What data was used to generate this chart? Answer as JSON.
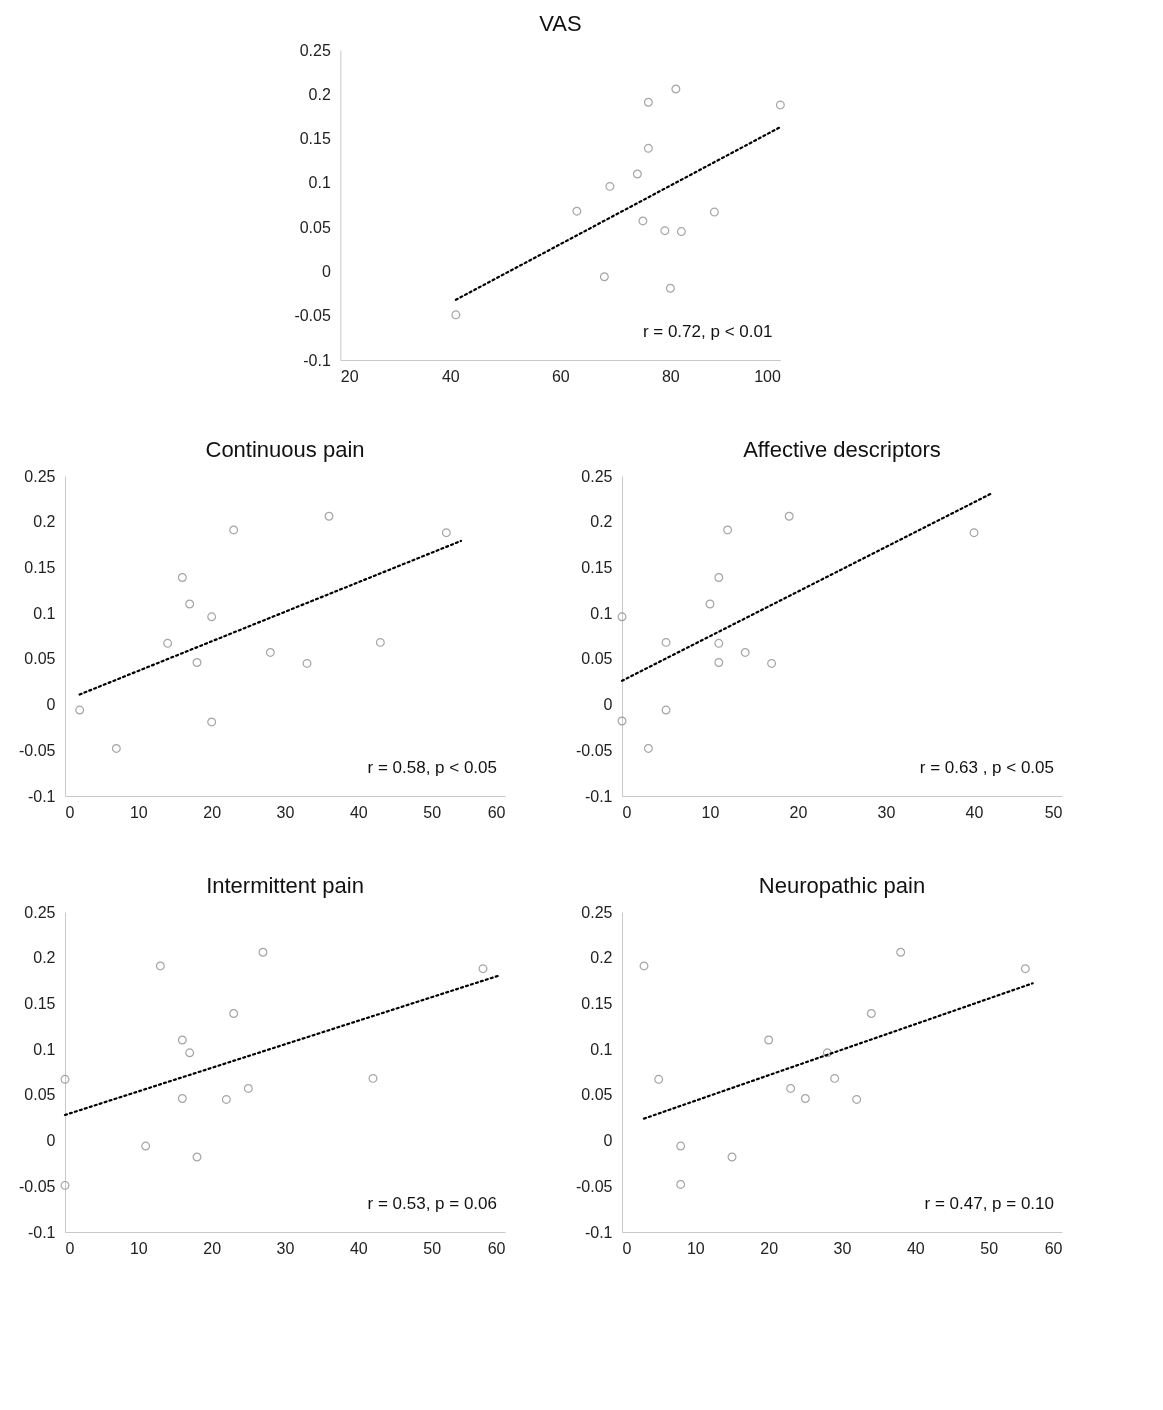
{
  "chart_data": [
    {
      "type": "scatter",
      "title": "VAS",
      "xlim": [
        20,
        100
      ],
      "xticks": [
        20,
        40,
        60,
        80,
        100
      ],
      "ylim": [
        -0.1,
        0.25
      ],
      "yticks": [
        -0.1,
        -0.05,
        0,
        0.05,
        0.1,
        0.15,
        0.2,
        0.25
      ],
      "annotations": [
        "r = 0.72, p < 0.01"
      ],
      "series": [
        {
          "marker": "circle",
          "color": "#7f7f7f",
          "x": [
            41,
            63,
            68,
            69,
            74,
            75,
            76,
            76,
            79,
            80,
            81,
            82,
            88,
            100
          ],
          "values": [
            -0.049,
            0.068,
            -0.006,
            0.096,
            0.11,
            0.057,
            0.191,
            0.139,
            0.046,
            -0.019,
            0.206,
            0.045,
            0.067,
            0.188
          ]
        },
        {
          "type": "line",
          "color": "#000000",
          "line_style": "dotted",
          "x": [
            41,
            100
          ],
          "values": [
            -0.032,
            0.163
          ]
        }
      ]
    },
    {
      "type": "scatter",
      "title": "Continuous pain",
      "xlim": [
        0,
        60
      ],
      "xticks": [
        0,
        10,
        20,
        30,
        40,
        50,
        60
      ],
      "ylim": [
        -0.1,
        0.25
      ],
      "yticks": [
        -0.1,
        -0.05,
        0,
        0.05,
        0.1,
        0.15,
        0.2,
        0.25
      ],
      "annotations": [
        "r = 0.58, p < 0.05"
      ],
      "series": [
        {
          "marker": "circle",
          "color": "#7f7f7f",
          "x": [
            2,
            7,
            14,
            16,
            17,
            18,
            20,
            20,
            23,
            28,
            33,
            36,
            43,
            52
          ],
          "values": [
            -0.006,
            -0.048,
            0.067,
            0.139,
            0.11,
            0.046,
            0.096,
            -0.019,
            0.191,
            0.057,
            0.045,
            0.206,
            0.068,
            0.188
          ]
        },
        {
          "type": "line",
          "color": "#000000",
          "line_style": "dotted",
          "x": [
            2,
            54
          ],
          "values": [
            0.011,
            0.179
          ]
        }
      ]
    },
    {
      "type": "scatter",
      "title": "Affective descriptors",
      "xlim": [
        0,
        50
      ],
      "xticks": [
        0,
        10,
        20,
        30,
        40,
        50
      ],
      "ylim": [
        -0.1,
        0.25
      ],
      "yticks": [
        -0.1,
        -0.05,
        0,
        0.05,
        0.1,
        0.15,
        0.2,
        0.25
      ],
      "annotations": [
        "r = 0.63 , p < 0.05"
      ],
      "series": [
        {
          "marker": "circle",
          "color": "#7f7f7f",
          "x": [
            0,
            0,
            3,
            5,
            5,
            10,
            11,
            11,
            11,
            12,
            14,
            17,
            19,
            40
          ],
          "values": [
            0.096,
            -0.018,
            -0.048,
            0.068,
            -0.006,
            0.11,
            0.139,
            0.067,
            0.046,
            0.191,
            0.057,
            0.045,
            0.206,
            0.188
          ]
        },
        {
          "type": "line",
          "color": "#000000",
          "line_style": "dotted",
          "x": [
            0,
            42
          ],
          "values": [
            0.026,
            0.231
          ]
        }
      ]
    },
    {
      "type": "scatter",
      "title": "Intermittent pain",
      "xlim": [
        0,
        60
      ],
      "xticks": [
        0,
        10,
        20,
        30,
        40,
        50,
        60
      ],
      "ylim": [
        -0.1,
        0.25
      ],
      "yticks": [
        -0.1,
        -0.05,
        0,
        0.05,
        0.1,
        0.15,
        0.2,
        0.25
      ],
      "annotations": [
        "r = 0.53, p = 0.06"
      ],
      "series": [
        {
          "marker": "circle",
          "color": "#7f7f7f",
          "x": [
            0,
            0,
            11,
            13,
            16,
            16,
            17,
            18,
            22,
            23,
            25,
            27,
            42,
            57
          ],
          "values": [
            0.067,
            -0.049,
            -0.006,
            0.191,
            0.11,
            0.046,
            0.096,
            -0.018,
            0.045,
            0.139,
            0.057,
            0.206,
            0.068,
            0.188
          ]
        },
        {
          "type": "line",
          "color": "#000000",
          "line_style": "dotted",
          "x": [
            0,
            59
          ],
          "values": [
            0.028,
            0.18
          ]
        }
      ]
    },
    {
      "type": "scatter",
      "title": "Neuropathic pain",
      "xlim": [
        0,
        60
      ],
      "xticks": [
        0,
        10,
        20,
        30,
        40,
        50,
        60
      ],
      "ylim": [
        -0.1,
        0.25
      ],
      "yticks": [
        -0.1,
        -0.05,
        0,
        0.05,
        0.1,
        0.15,
        0.2,
        0.25
      ],
      "annotations": [
        "r = 0.47, p = 0.10"
      ],
      "series": [
        {
          "marker": "circle",
          "color": "#7f7f7f",
          "x": [
            3,
            5,
            8,
            8,
            15,
            20,
            23,
            25,
            28,
            29,
            32,
            34,
            38,
            55
          ],
          "values": [
            0.191,
            0.067,
            -0.006,
            -0.048,
            -0.018,
            0.11,
            0.057,
            0.046,
            0.096,
            0.068,
            0.045,
            0.139,
            0.206,
            0.188
          ]
        },
        {
          "type": "line",
          "color": "#000000",
          "line_style": "dotted",
          "x": [
            3,
            56
          ],
          "values": [
            0.024,
            0.172
          ]
        }
      ]
    }
  ]
}
